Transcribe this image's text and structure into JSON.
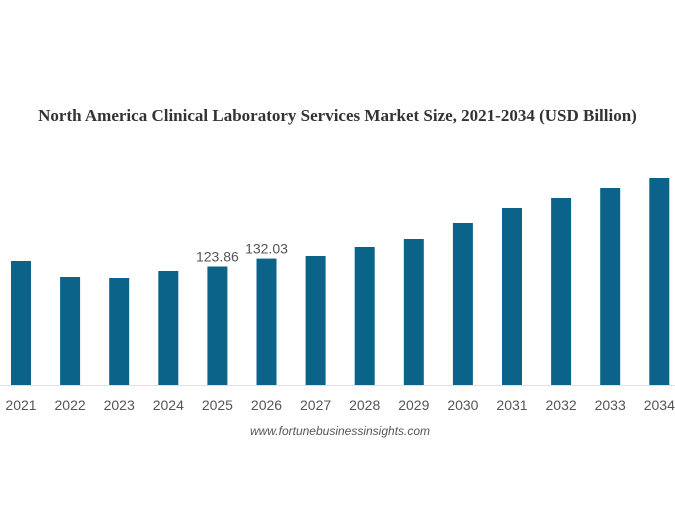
{
  "chart_data": {
    "type": "bar",
    "title": "North America Clinical Laboratory Services Market Size, 2021-2034 (USD Billion)",
    "xlabel": "",
    "ylabel": "",
    "categories": [
      "2021",
      "2022",
      "2023",
      "2024",
      "2025",
      "2026",
      "2027",
      "2028",
      "2029",
      "2030",
      "2031",
      "2032",
      "2033",
      "2034"
    ],
    "values": [
      129.6,
      112.9,
      111.8,
      119.1,
      123.86,
      132.03,
      134.8,
      144.2,
      152.6,
      169.3,
      185.0,
      195.4,
      205.9,
      216.3
    ],
    "data_labels": [
      {
        "category": "2025",
        "text": "123.86"
      },
      {
        "category": "2026",
        "text": "132.03"
      }
    ],
    "ylim": [
      0,
      230
    ],
    "grid": false,
    "legend": "none",
    "bar_color": "#0b6389",
    "axis_color": "#e0e0e0"
  },
  "source": "www.fortunebusinessinsights.com"
}
